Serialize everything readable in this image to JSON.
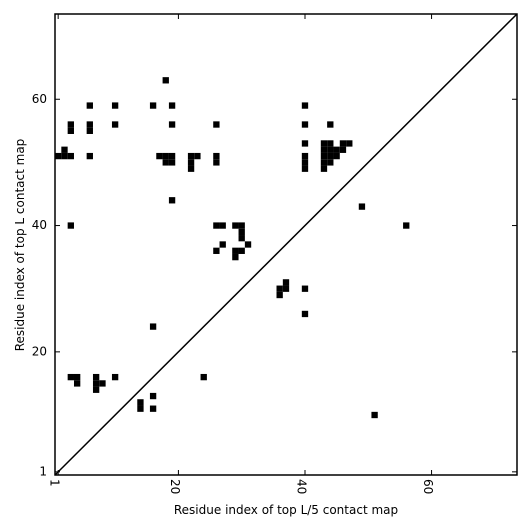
{
  "chart_data": {
    "type": "scatter",
    "xlabel": "Residue index of top L/5 contact map",
    "ylabel": "Residue index of top L contact map",
    "xlim": [
      0.5,
      73.5
    ],
    "ylim": [
      0.5,
      73.5
    ],
    "xticks": [
      1,
      20,
      40,
      60
    ],
    "yticks": [
      1,
      20,
      40,
      60
    ],
    "color": "#000000",
    "marker": "square",
    "diagonal": true,
    "x": [
      18,
      6,
      10,
      16,
      19,
      40,
      3,
      6,
      10,
      19,
      26,
      40,
      44,
      3,
      6,
      40,
      43,
      44,
      46,
      47,
      2,
      43,
      44,
      45,
      46,
      1,
      2,
      3,
      6,
      17,
      18,
      19,
      22,
      23,
      26,
      40,
      43,
      44,
      45,
      18,
      19,
      22,
      26,
      40,
      43,
      44,
      22,
      40,
      43,
      19,
      49,
      3,
      26,
      27,
      29,
      30,
      56,
      30,
      30,
      27,
      31,
      26,
      29,
      30,
      29,
      37,
      36,
      37,
      40,
      36,
      40,
      16,
      3,
      4,
      7,
      10,
      24,
      4,
      7,
      8,
      7,
      16,
      14,
      14,
      16,
      51
    ],
    "values": [
      63,
      59,
      59,
      59,
      59,
      59,
      56,
      56,
      56,
      56,
      56,
      56,
      56,
      55,
      55,
      53,
      53,
      53,
      53,
      53,
      52,
      52,
      52,
      52,
      52,
      51,
      51,
      51,
      51,
      51,
      51,
      51,
      51,
      51,
      51,
      51,
      51,
      51,
      51,
      50,
      50,
      50,
      50,
      50,
      50,
      50,
      49,
      49,
      49,
      44,
      43,
      40,
      40,
      40,
      40,
      40,
      40,
      39,
      38,
      37,
      37,
      36,
      36,
      36,
      35,
      31,
      30,
      30,
      30,
      29,
      26,
      24,
      16,
      16,
      16,
      16,
      16,
      15,
      15,
      15,
      14,
      13,
      12,
      11,
      11,
      10
    ]
  }
}
